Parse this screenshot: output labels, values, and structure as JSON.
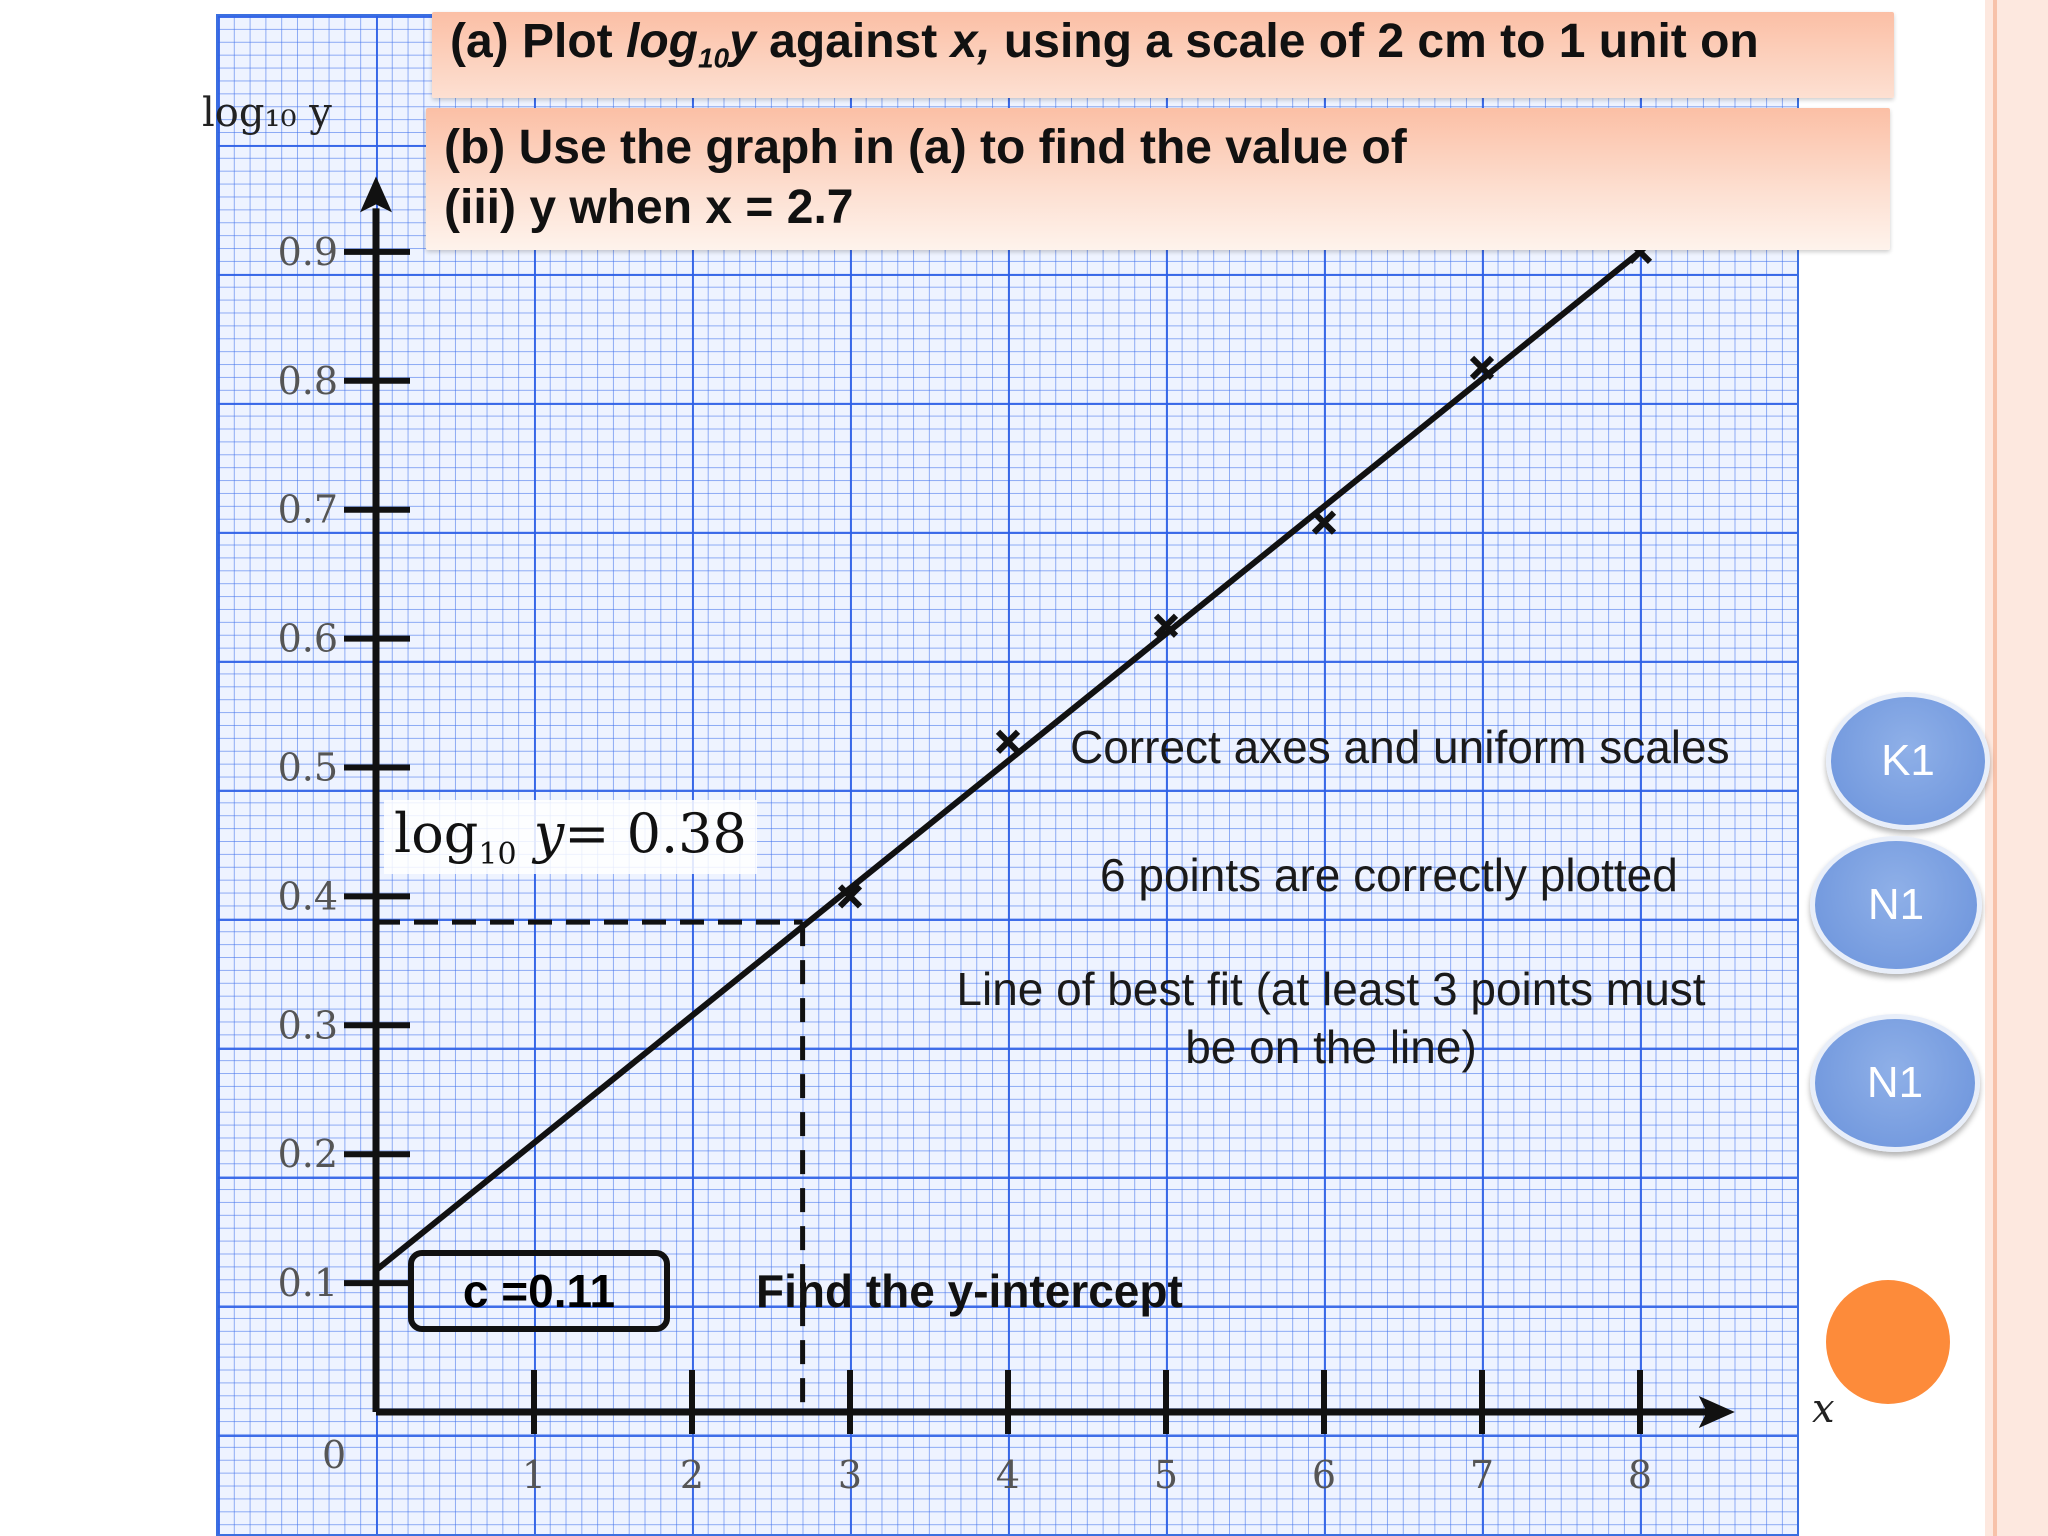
{
  "question_a": {
    "prefix": "(a) Plot ",
    "log_base": "log",
    "log_sub": "10",
    "log_var": "y",
    "mid": " against ",
    "xvar": "x,",
    "suffix": " using a scale of 2 cm to 1 unit on"
  },
  "question_b": {
    "line1": "(b) Use the graph in (a) to find the value of",
    "line2": "(iii) y when x = 2.7"
  },
  "notes": {
    "axes": "Correct axes and uniform scales",
    "points": "6 points are correctly plotted",
    "best_fit_line1": "Line of best fit (at least 3 points must",
    "best_fit_line2": "be on the line)"
  },
  "badges": {
    "k1": "K1",
    "n1_first": "N1",
    "n1_second": "N1"
  },
  "intercept_label": "c =0.11",
  "find_intercept": "Find the y-intercept",
  "answer": {
    "prefix": "log",
    "sub": "10",
    "var": "y",
    "eq": "= 0.38"
  },
  "chart_data": {
    "type": "scatter",
    "xlabel": "x",
    "ylabel": "log₁₀ y",
    "origin_label": "0",
    "xlim": [
      0,
      8.6
    ],
    "ylim": [
      0,
      0.94
    ],
    "x_ticks": [
      "1",
      "2",
      "3",
      "4",
      "5",
      "6",
      "7",
      "8"
    ],
    "y_ticks": [
      "0.1",
      "0.2",
      "0.3",
      "0.4",
      "0.5",
      "0.6",
      "0.7",
      "0.8",
      "0.9"
    ],
    "points": [
      {
        "x": 3,
        "y": 0.4
      },
      {
        "x": 4,
        "y": 0.52
      },
      {
        "x": 5,
        "y": 0.61
      },
      {
        "x": 6,
        "y": 0.69
      },
      {
        "x": 7,
        "y": 0.81
      },
      {
        "x": 8,
        "y": 0.9
      }
    ],
    "best_fit": {
      "intercept": 0.11,
      "x_start": 0,
      "x_end": 8,
      "y_end": 0.9
    },
    "reading": {
      "x": 2.7,
      "y": 0.38
    }
  }
}
